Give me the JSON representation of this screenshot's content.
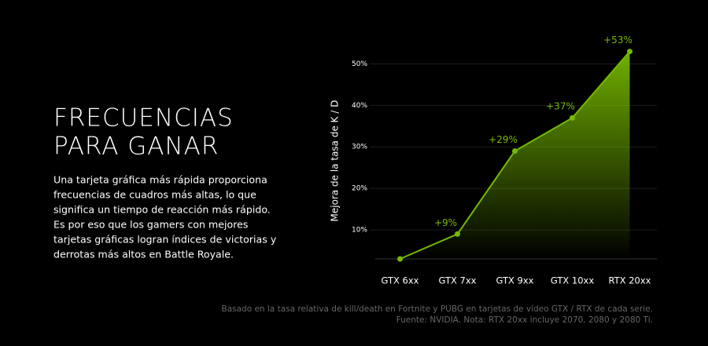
{
  "headline": [
    "FRECUENCIAS",
    "PARA GANAR"
  ],
  "body": [
    "Una tarjeta gráfica más rápida proporciona",
    "frecuencias de cuadros más altas, lo que",
    "significa un tiempo de reacción más rápido.",
    "Es por eso que los gamers con mejores",
    "tarjetas gráficas logran índices de victorias y",
    "derrotas más altos en Battle Royale."
  ],
  "footnote": [
    "Basado en la tasa relativa de kill/death en Fortnite y PUBG en tarjetas de vídeo GTX / RTX de cada serie.",
    "Fuente: NVIDIA. Nota: RTX 20xx incluye 2070, 2080 y 2080 Ti."
  ],
  "chart_data": {
    "type": "area",
    "y_label": "Mejora de la tasa de K / D",
    "categories": [
      "GTX 6xx",
      "GTX 7xx",
      "GTX 9xx",
      "GTX 10xx",
      "RTX 20xx"
    ],
    "values": [
      3,
      9,
      29,
      37,
      53
    ],
    "value_labels": [
      null,
      "+9%",
      "+29%",
      "+37%",
      "+53%"
    ],
    "color": "#76b900",
    "ylim": [
      3,
      55
    ],
    "yticks": [
      {
        "value": 10,
        "label": "10%"
      },
      {
        "value": 20,
        "label": "20%"
      },
      {
        "value": 30,
        "label": "30%"
      },
      {
        "value": 40,
        "label": "40%"
      },
      {
        "value": 50,
        "label": "50%"
      }
    ],
    "grid": true
  }
}
